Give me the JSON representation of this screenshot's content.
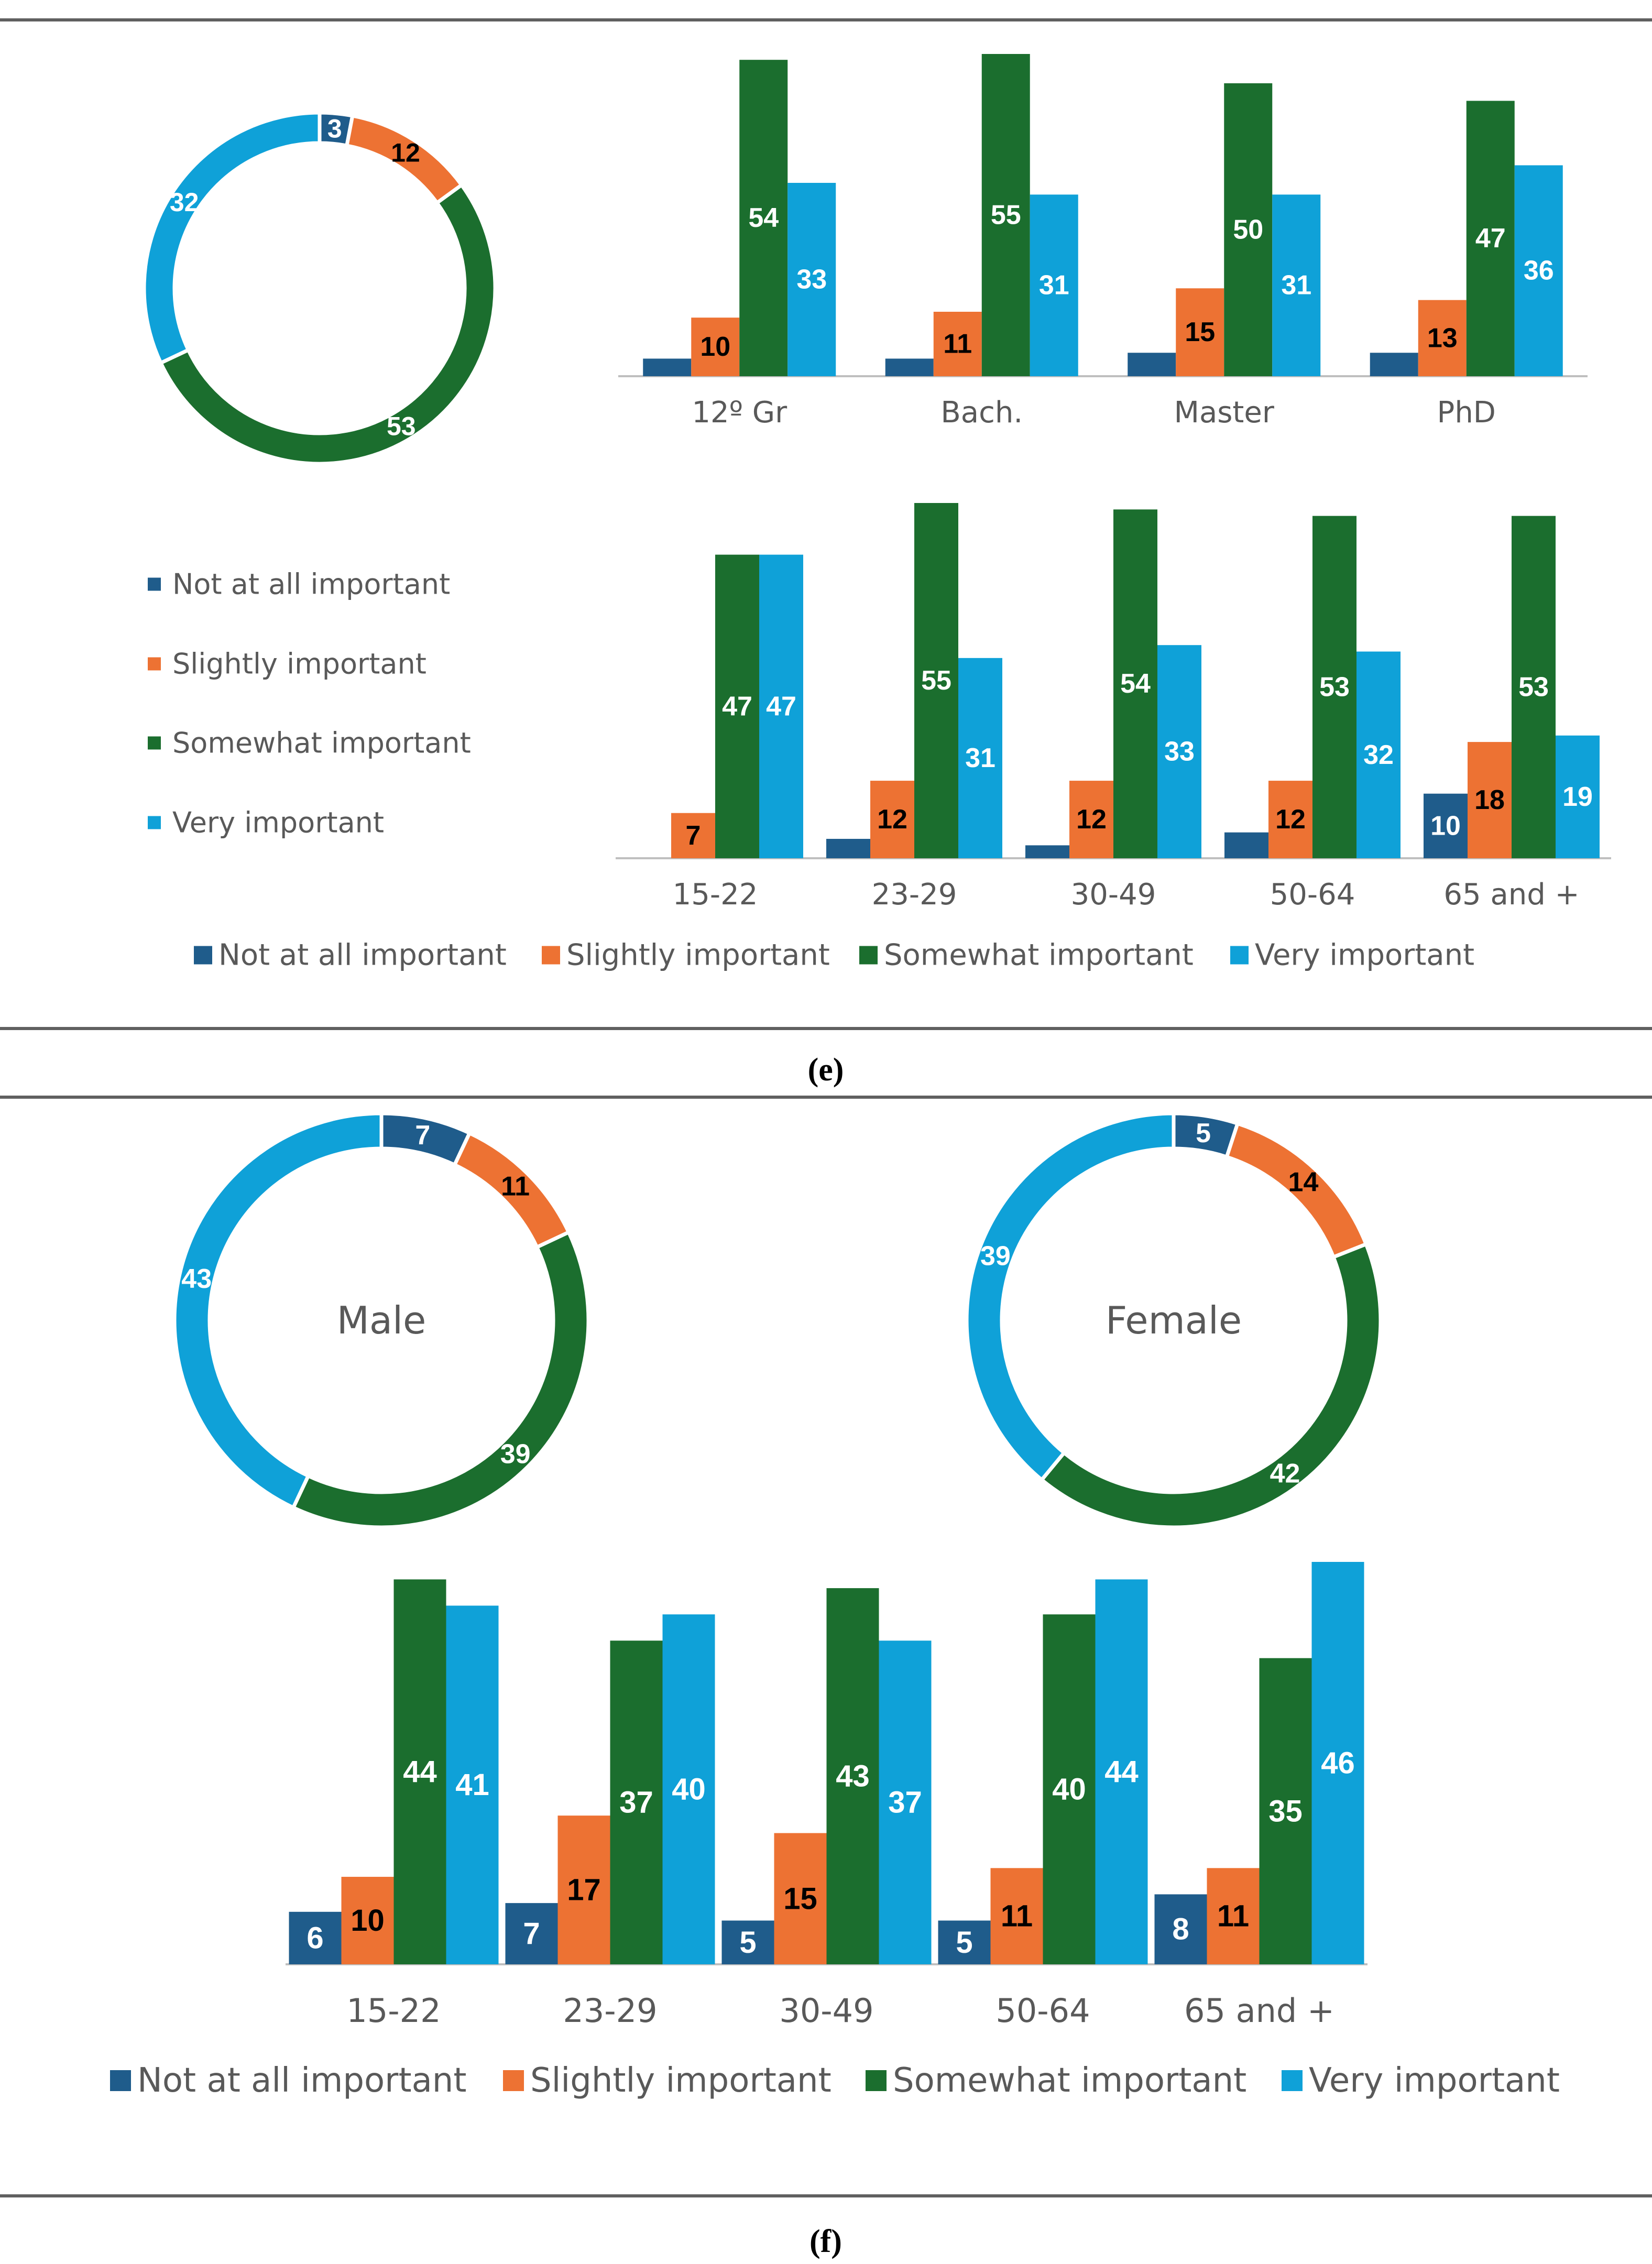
{
  "palette": {
    "not_at_all": "#1f5c8b",
    "slightly": "#ed7233",
    "somewhat": "#1b6e2e",
    "very": "#0fa1d8",
    "text_dark": "#000000",
    "text_light": "#ffffff",
    "axis": "#bfbfbf",
    "rule": "#606060"
  },
  "legend_labels": [
    "Not at all important",
    "Slightly important",
    "Somewhat important",
    "Very important"
  ],
  "captions": {
    "e": "(e)",
    "f": "(f)"
  },
  "chart_data": [
    {
      "id": "e-donut",
      "type": "pie",
      "style": "donut",
      "title": "",
      "labels": [
        "Not at all important",
        "Slightly important",
        "Somewhat important",
        "Very important"
      ],
      "values": [
        3,
        12,
        53,
        32
      ]
    },
    {
      "id": "e-education",
      "type": "bar",
      "title": "",
      "xlabel": "",
      "ylabel": "",
      "ylim": [
        0,
        60
      ],
      "categories": [
        "12º Gr",
        "Bach.",
        "Master",
        "PhD"
      ],
      "series": [
        {
          "name": "Not at all important",
          "values": [
            3,
            3,
            4,
            4
          ],
          "labels_shown": false
        },
        {
          "name": "Slightly important",
          "values": [
            10,
            11,
            15,
            13
          ]
        },
        {
          "name": "Somewhat important",
          "values": [
            54,
            55,
            50,
            47
          ]
        },
        {
          "name": "Very important",
          "values": [
            33,
            31,
            31,
            36
          ]
        }
      ]
    },
    {
      "id": "e-age",
      "type": "bar",
      "title": "",
      "xlabel": "",
      "ylabel": "",
      "ylim": [
        0,
        60
      ],
      "categories": [
        "15-22",
        "23-29",
        "30-49",
        "50-64",
        "65 and +"
      ],
      "legend": "bottom",
      "series": [
        {
          "name": "Not at all important",
          "values": [
            0,
            3,
            2,
            4,
            10
          ],
          "shown_labels": [
            null,
            null,
            null,
            null,
            "10"
          ]
        },
        {
          "name": "Slightly important",
          "values": [
            7,
            12,
            12,
            12,
            18
          ]
        },
        {
          "name": "Somewhat important",
          "values": [
            47,
            55,
            54,
            53,
            53
          ]
        },
        {
          "name": "Very important",
          "values": [
            47,
            31,
            33,
            32,
            19
          ]
        }
      ]
    },
    {
      "id": "f-male",
      "type": "pie",
      "style": "donut",
      "title": "Male",
      "labels": [
        "Not at all important",
        "Slightly important",
        "Somewhat important",
        "Very important"
      ],
      "values": [
        7,
        11,
        39,
        43
      ]
    },
    {
      "id": "f-female",
      "type": "pie",
      "style": "donut",
      "title": "Female",
      "labels": [
        "Not at all important",
        "Slightly important",
        "Somewhat important",
        "Very important"
      ],
      "values": [
        5,
        14,
        42,
        39
      ]
    },
    {
      "id": "f-age",
      "type": "bar",
      "title": "",
      "xlabel": "",
      "ylabel": "",
      "ylim": [
        0,
        50
      ],
      "categories": [
        "15-22",
        "23-29",
        "30-49",
        "50-64",
        "65 and +"
      ],
      "legend": "bottom",
      "series": [
        {
          "name": "Not at all important",
          "values": [
            6,
            7,
            5,
            5,
            8
          ]
        },
        {
          "name": "Slightly important",
          "values": [
            10,
            17,
            15,
            11,
            11
          ]
        },
        {
          "name": "Somewhat important",
          "values": [
            44,
            37,
            43,
            40,
            35
          ]
        },
        {
          "name": "Very important",
          "values": [
            41,
            40,
            37,
            44,
            46
          ]
        }
      ]
    }
  ]
}
